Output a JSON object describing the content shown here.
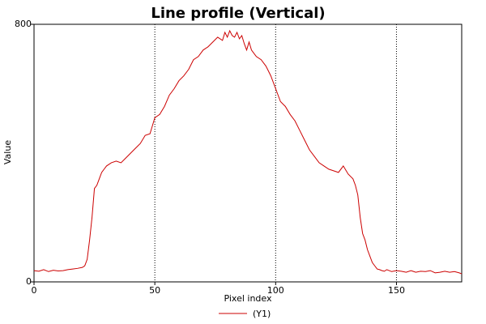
{
  "chart_data": {
    "type": "line",
    "title": "Line profile (Vertical)",
    "xlabel": "Pixel index",
    "ylabel": "Value",
    "xlim": [
      0,
      177
    ],
    "ylim": [
      0,
      800
    ],
    "x_ticks": [
      0,
      50,
      100,
      150
    ],
    "y_ticks": [
      0,
      800
    ],
    "x_tick_labels": [
      "0",
      "50",
      "100",
      "150"
    ],
    "y_tick_labels": [
      "0",
      "800"
    ],
    "grid": "vertical dotted lines at x ticks",
    "legend": "bottom-center",
    "series": [
      {
        "name": "(Y1)",
        "color": "#cc0000",
        "x": [
          0,
          2,
          4,
          6,
          8,
          10,
          12,
          14,
          16,
          18,
          20,
          21,
          22,
          23,
          24,
          25,
          26,
          27,
          28,
          29,
          30,
          32,
          34,
          36,
          38,
          40,
          42,
          44,
          46,
          48,
          50,
          52,
          54,
          56,
          58,
          60,
          62,
          64,
          66,
          68,
          70,
          72,
          74,
          76,
          78,
          79,
          80,
          81,
          82,
          83,
          84,
          85,
          86,
          87,
          88,
          89,
          90,
          91,
          92,
          94,
          96,
          98,
          100,
          102,
          104,
          106,
          108,
          110,
          112,
          114,
          116,
          118,
          120,
          122,
          124,
          126,
          128,
          130,
          132,
          133,
          134,
          135,
          136,
          137,
          138,
          139,
          140,
          141,
          142,
          143,
          144,
          145,
          146,
          148,
          150,
          152,
          154,
          156,
          158,
          160,
          162,
          164,
          166,
          168,
          170,
          172,
          174,
          176,
          177
        ],
        "y": [
          35,
          33,
          38,
          32,
          36,
          34,
          35,
          38,
          40,
          42,
          45,
          50,
          70,
          130,
          200,
          290,
          300,
          320,
          340,
          350,
          360,
          370,
          375,
          370,
          385,
          400,
          415,
          430,
          455,
          460,
          510,
          520,
          545,
          580,
          600,
          625,
          640,
          660,
          690,
          700,
          720,
          730,
          745,
          760,
          750,
          775,
          760,
          780,
          765,
          760,
          775,
          755,
          765,
          740,
          720,
          745,
          720,
          710,
          700,
          690,
          670,
          640,
          600,
          560,
          545,
          520,
          500,
          470,
          440,
          410,
          390,
          370,
          360,
          350,
          345,
          340,
          360,
          335,
          320,
          300,
          270,
          200,
          150,
          130,
          100,
          80,
          60,
          50,
          40,
          38,
          35,
          33,
          38,
          32,
          35,
          33,
          30,
          35,
          30,
          33,
          32,
          35,
          28,
          30,
          33,
          30,
          32,
          28,
          25
        ]
      }
    ]
  }
}
